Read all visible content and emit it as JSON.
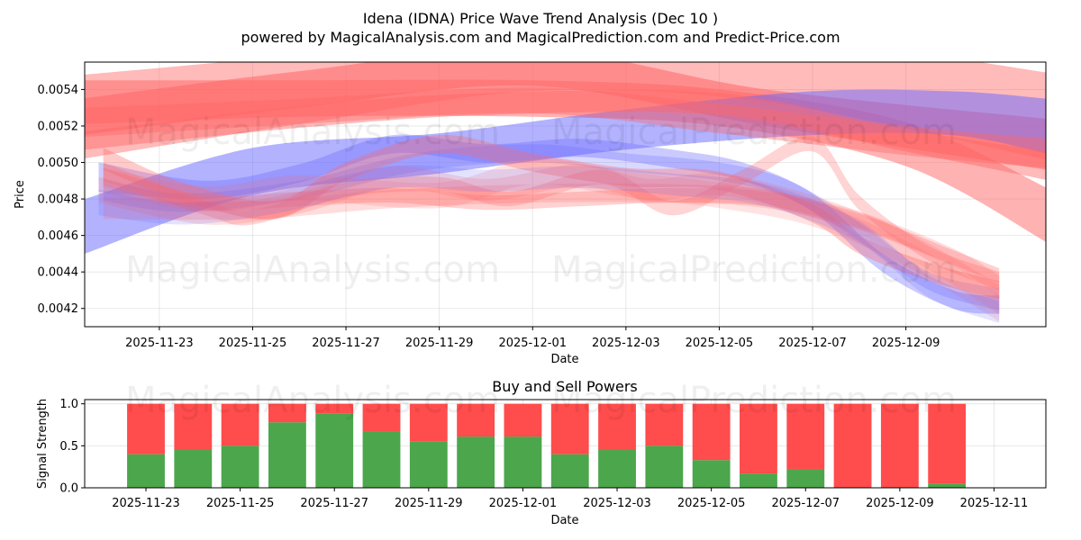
{
  "colors": {
    "buy": "#4ca64c",
    "sell": "#ff4c4c",
    "band_red": "#ff6666",
    "band_blue": "#6666ff",
    "grid": "#b0b0b0"
  },
  "header": {
    "title": "Idena (IDNA) Price Wave Trend Analysis (Dec 10 )",
    "subtitle": "powered by MagicalAnalysis.com and MagicalPrediction.com and Predict-Price.com"
  },
  "watermarks": {
    "price_row1": [
      "MagicalAnalysis.com",
      "MagicalPrediction.com"
    ],
    "price_row2": [
      "MagicalAnalysis.com",
      "MagicalPrediction.com"
    ],
    "power_row": [
      "MagicalAnalysis.com",
      "MagicalPrediction.com"
    ]
  },
  "chart_data": [
    {
      "type": "area",
      "title": "",
      "xlabel": "Date",
      "ylabel": "Price",
      "x_start_day": -1.6,
      "x_end_day": 19.0,
      "ylim": [
        0.0041,
        0.00555
      ],
      "x_ticks": [
        {
          "day": 0,
          "label": "2025-11-23"
        },
        {
          "day": 2,
          "label": "2025-11-25"
        },
        {
          "day": 4,
          "label": "2025-11-27"
        },
        {
          "day": 6,
          "label": "2025-11-29"
        },
        {
          "day": 8,
          "label": "2025-12-01"
        },
        {
          "day": 10,
          "label": "2025-12-03"
        },
        {
          "day": 12,
          "label": "2025-12-05"
        },
        {
          "day": 14,
          "label": "2025-12-07"
        },
        {
          "day": 16,
          "label": "2025-12-09"
        }
      ],
      "y_ticks": [
        "0.0042",
        "0.0044",
        "0.0046",
        "0.0048",
        "0.0050",
        "0.0052",
        "0.0054"
      ],
      "y_tick_values": [
        0.0042,
        0.0044,
        0.0046,
        0.0048,
        0.005,
        0.0052,
        0.0054
      ],
      "bands": [
        {
          "color": "red",
          "opacity": 0.45,
          "x": [
            -1.65,
            3,
            8,
            13,
            19.1
          ],
          "center": [
            0.00525,
            0.0054,
            0.00556,
            0.00552,
            0.00525
          ],
          "half_width": [
            0.00023,
            0.00019,
            0.00017,
            0.00019,
            0.00024
          ]
        },
        {
          "color": "red",
          "opacity": 0.55,
          "x": [
            -1.65,
            3,
            8,
            13,
            19
          ],
          "center": [
            0.00525,
            0.0054,
            0.00552,
            0.0053,
            0.0051
          ],
          "half_width": [
            0.0001,
            0.0001,
            0.0001,
            0.0001,
            0.00014
          ]
        },
        {
          "color": "red",
          "opacity": 0.5,
          "x": [
            -1.6,
            3,
            8,
            12,
            16,
            19.1
          ],
          "center": [
            0.00533,
            0.00535,
            0.00535,
            0.0053,
            0.0051,
            0.0047
          ],
          "half_width": [
            0.00012,
            0.0001,
            0.0001,
            0.0001,
            0.00012,
            0.00015
          ]
        },
        {
          "color": "blue",
          "opacity": 0.5,
          "x": [
            -1.6,
            2,
            6,
            10,
            14,
            17,
            19
          ],
          "center": [
            0.00465,
            0.00495,
            0.00505,
            0.00518,
            0.00527,
            0.00527,
            0.0052
          ],
          "half_width": [
            0.00015,
            0.00013,
            0.00011,
            0.00011,
            0.00012,
            0.00012,
            0.00015
          ]
        },
        {
          "color": "red",
          "opacity": 0.4,
          "x": [
            -1.6,
            3,
            8,
            12,
            16,
            19
          ],
          "center": [
            0.00522,
            0.00528,
            0.00534,
            0.00524,
            0.00512,
            0.00505
          ],
          "half_width": [
            8e-05,
            7e-05,
            7e-05,
            8e-05,
            8e-05,
            8e-05
          ]
        },
        {
          "color": "red",
          "opacity": 0.45,
          "x": [
            -1.6,
            3,
            7,
            12,
            16,
            19.1
          ],
          "center": [
            0.00512,
            0.00525,
            0.00532,
            0.00532,
            0.00512,
            0.00498
          ],
          "half_width": [
            5e-05,
            6e-05,
            6e-05,
            6e-05,
            6e-05,
            8e-05
          ]
        },
        {
          "color": "blue",
          "opacity": 0.35,
          "x": [
            -1.3,
            1,
            3,
            5,
            7,
            9,
            11,
            12.5,
            14,
            15.5,
            17,
            18
          ],
          "center": [
            0.00492,
            0.00485,
            0.00494,
            0.0051,
            0.00505,
            0.00508,
            0.00502,
            0.00495,
            0.00478,
            0.00445,
            0.00425,
            0.00422
          ],
          "half_width": [
            8e-05,
            5e-05,
            5e-05,
            5e-05,
            5e-05,
            5e-05,
            5e-05,
            5e-05,
            5e-05,
            5e-05,
            5e-05,
            5e-05
          ]
        },
        {
          "color": "blue",
          "opacity": 0.25,
          "x": [
            -1.2,
            0.5,
            3,
            5.5,
            8,
            10,
            12,
            13.5,
            15,
            16.5,
            18
          ],
          "center": [
            0.00485,
            0.00478,
            0.00485,
            0.005,
            0.00505,
            0.005,
            0.00495,
            0.00485,
            0.00462,
            0.00435,
            0.00425
          ],
          "half_width": [
            6e-05,
            5e-05,
            5e-05,
            5e-05,
            5e-05,
            5e-05,
            5e-05,
            5e-05,
            5e-05,
            5e-05,
            6e-05
          ]
        },
        {
          "color": "red",
          "opacity": 0.35,
          "x": [
            -1.2,
            0.5,
            2.5,
            4,
            6,
            8,
            10,
            12,
            14,
            15,
            16.5,
            18
          ],
          "center": [
            0.00502,
            0.00484,
            0.00474,
            0.00495,
            0.0051,
            0.005,
            0.00492,
            0.0049,
            0.00472,
            0.00455,
            0.0044,
            0.0043
          ],
          "half_width": [
            6e-05,
            5e-05,
            5e-05,
            5e-05,
            5e-05,
            5e-05,
            5e-05,
            5e-05,
            5e-05,
            5e-05,
            5e-05,
            5e-05
          ]
        },
        {
          "color": "red",
          "opacity": 0.3,
          "x": [
            -1.2,
            1,
            3,
            5,
            7,
            9,
            11,
            13,
            15,
            17,
            18
          ],
          "center": [
            0.00492,
            0.00478,
            0.0048,
            0.00482,
            0.00478,
            0.0048,
            0.00482,
            0.0048,
            0.00468,
            0.00448,
            0.00438
          ],
          "half_width": [
            5e-05,
            4e-05,
            4e-05,
            4e-05,
            4e-05,
            4e-05,
            4e-05,
            4e-05,
            4e-05,
            4e-05,
            4e-05
          ]
        },
        {
          "color": "red",
          "opacity": 0.28,
          "x": [
            -1.2,
            1,
            2,
            4,
            6,
            7.5,
            9.5,
            11,
            12.5,
            14,
            15,
            16.5,
            18
          ],
          "center": [
            0.00495,
            0.00475,
            0.0047,
            0.00485,
            0.00488,
            0.0048,
            0.00492,
            0.00475,
            0.00492,
            0.0051,
            0.00478,
            0.0045,
            0.00435
          ],
          "half_width": [
            5e-05,
            4e-05,
            4e-05,
            4e-05,
            4e-05,
            4e-05,
            4e-05,
            4e-05,
            4e-05,
            4e-05,
            4e-05,
            4e-05,
            5e-05
          ]
        },
        {
          "color": "red",
          "opacity": 0.22,
          "x": [
            -1.2,
            2,
            5,
            8,
            11,
            13,
            15,
            17,
            18
          ],
          "center": [
            0.00475,
            0.00474,
            0.0048,
            0.00483,
            0.00483,
            0.0048,
            0.00468,
            0.00448,
            0.00432
          ],
          "half_width": [
            6e-05,
            5e-05,
            5e-05,
            5e-05,
            5e-05,
            5e-05,
            5e-05,
            5e-05,
            6e-05
          ]
        },
        {
          "color": "red",
          "opacity": 0.2,
          "x": [
            -1.3,
            1,
            3,
            5,
            7,
            9,
            10.5,
            12,
            14,
            16,
            18
          ],
          "center": [
            0.00485,
            0.00472,
            0.00478,
            0.00492,
            0.00485,
            0.00493,
            0.00485,
            0.00488,
            0.00476,
            0.00455,
            0.00425
          ],
          "half_width": [
            7e-05,
            6e-05,
            6e-05,
            6e-05,
            6e-05,
            6e-05,
            6e-05,
            6e-05,
            6e-05,
            7e-05,
            8e-05
          ]
        },
        {
          "color": "red",
          "opacity": 0.18,
          "x": [
            -1.2,
            1,
            3,
            6,
            8,
            10,
            12,
            14,
            16,
            18
          ],
          "center": [
            0.0049,
            0.0048,
            0.00486,
            0.00482,
            0.00495,
            0.00488,
            0.00482,
            0.00472,
            0.0045,
            0.0042
          ],
          "half_width": [
            7e-05,
            7e-05,
            7e-05,
            7e-05,
            7e-05,
            7e-05,
            7e-05,
            7e-05,
            7e-05,
            7e-05
          ]
        },
        {
          "color": "blue",
          "opacity": 0.18,
          "x": [
            -1.3,
            0.5,
            2.5,
            5,
            7,
            9,
            11,
            13,
            15,
            16.5,
            18
          ],
          "center": [
            0.00478,
            0.00472,
            0.00478,
            0.00492,
            0.0049,
            0.00492,
            0.00488,
            0.00482,
            0.00462,
            0.00432,
            0.00418
          ],
          "half_width": [
            7e-05,
            6e-05,
            6e-05,
            6e-05,
            6e-05,
            6e-05,
            6e-05,
            6e-05,
            6e-05,
            6e-05,
            6e-05
          ]
        }
      ]
    },
    {
      "type": "bar",
      "title": "Buy and Sell Powers",
      "xlabel": "Date",
      "ylabel": "Signal Strength",
      "x_start_day": -1.3,
      "x_end_day": 19.1,
      "ylim": [
        0,
        1.05
      ],
      "x_ticks": [
        {
          "day": 0,
          "label": "2025-11-23"
        },
        {
          "day": 2,
          "label": "2025-11-25"
        },
        {
          "day": 4,
          "label": "2025-11-27"
        },
        {
          "day": 6,
          "label": "2025-11-29"
        },
        {
          "day": 8,
          "label": "2025-12-01"
        },
        {
          "day": 10,
          "label": "2025-12-03"
        },
        {
          "day": 12,
          "label": "2025-12-05"
        },
        {
          "day": 14,
          "label": "2025-12-07"
        },
        {
          "day": 16,
          "label": "2025-12-09"
        },
        {
          "day": 18,
          "label": "2025-12-11"
        }
      ],
      "y_ticks": [
        "0.0",
        "0.5",
        "1.0"
      ],
      "y_tick_values": [
        0,
        0.5,
        1.0
      ],
      "categories": [
        "2025-11-23",
        "2025-11-24",
        "2025-11-25",
        "2025-11-26",
        "2025-11-27",
        "2025-11-28",
        "2025-11-29",
        "2025-11-30",
        "2025-12-01",
        "2025-12-02",
        "2025-12-03",
        "2025-12-04",
        "2025-12-05",
        "2025-12-06",
        "2025-12-07",
        "2025-12-08",
        "2025-12-09",
        "2025-12-10"
      ],
      "series": [
        {
          "name": "Buy",
          "values": [
            0.4,
            0.45,
            0.5,
            0.78,
            0.88,
            0.67,
            0.55,
            0.61,
            0.61,
            0.4,
            0.45,
            0.5,
            0.33,
            0.17,
            0.22,
            0.0,
            0.0,
            0.05
          ]
        },
        {
          "name": "Sell",
          "values": [
            0.6,
            0.55,
            0.5,
            0.22,
            0.12,
            0.33,
            0.45,
            0.39,
            0.39,
            0.6,
            0.55,
            0.5,
            0.67,
            0.83,
            0.78,
            1.0,
            1.0,
            0.95
          ]
        }
      ]
    }
  ]
}
